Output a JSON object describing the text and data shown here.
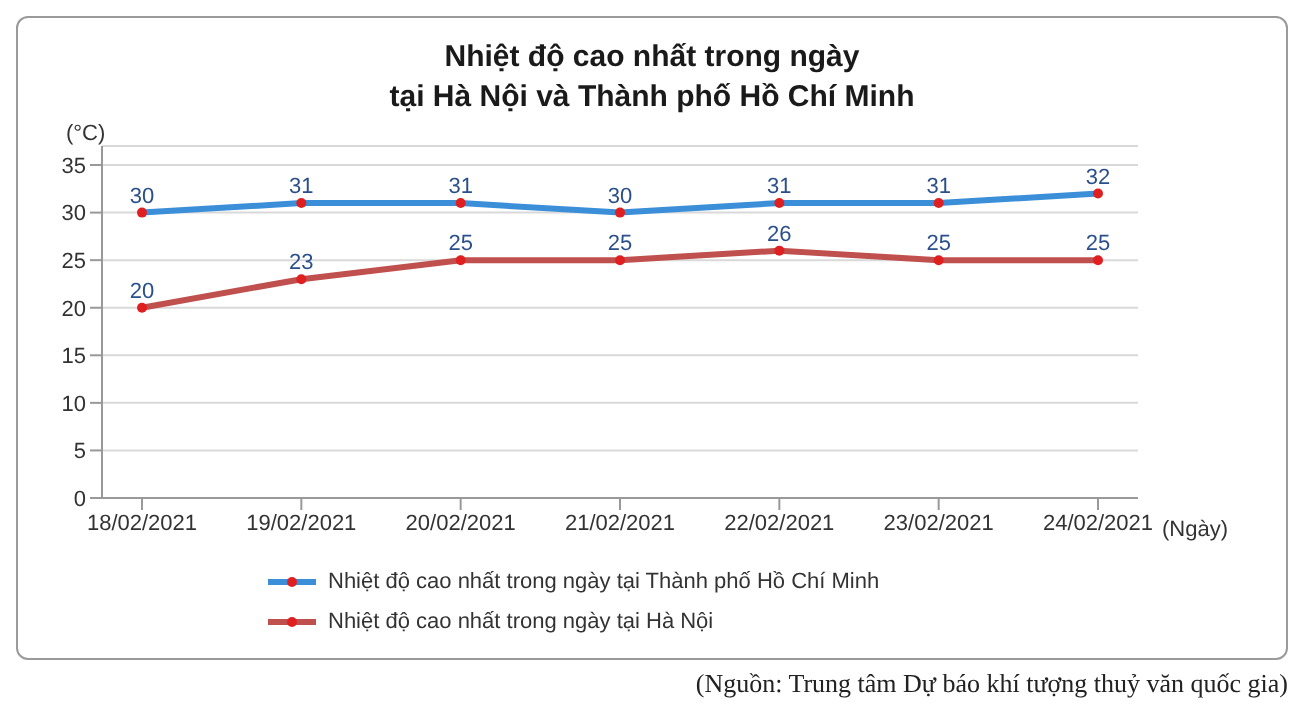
{
  "chart_data": {
    "type": "line",
    "title": "Nhiệt độ cao nhất trong ngày\ntại Hà Nội và Thành phố Hồ Chí Minh",
    "ylabel": "(°C)",
    "xlabel": "(Ngày)",
    "categories": [
      "18/02/2021",
      "19/02/2021",
      "20/02/2021",
      "21/02/2021",
      "22/02/2021",
      "23/02/2021",
      "24/02/2021"
    ],
    "series": [
      {
        "name": "Nhiệt độ cao nhất trong ngày tại Thành phố Hồ Chí Minh",
        "color": "#3a8fd8",
        "values": [
          30,
          31,
          31,
          30,
          31,
          31,
          32
        ]
      },
      {
        "name": "Nhiệt độ cao nhất trong ngày tại Hà Nội",
        "color": "#c0504d",
        "values": [
          20,
          23,
          25,
          25,
          26,
          25,
          25
        ]
      }
    ],
    "ylim": [
      0,
      37
    ],
    "yticks": [
      0,
      5,
      10,
      15,
      20,
      25,
      30,
      35
    ],
    "grid": "y",
    "legend": "bottom left",
    "marker": "circle",
    "line_style": "solid",
    "data_labels": true,
    "annotations": [
      "(Nguồn: Trung tâm Dự báo khí tượng thuỷ văn quốc gia)"
    ]
  }
}
